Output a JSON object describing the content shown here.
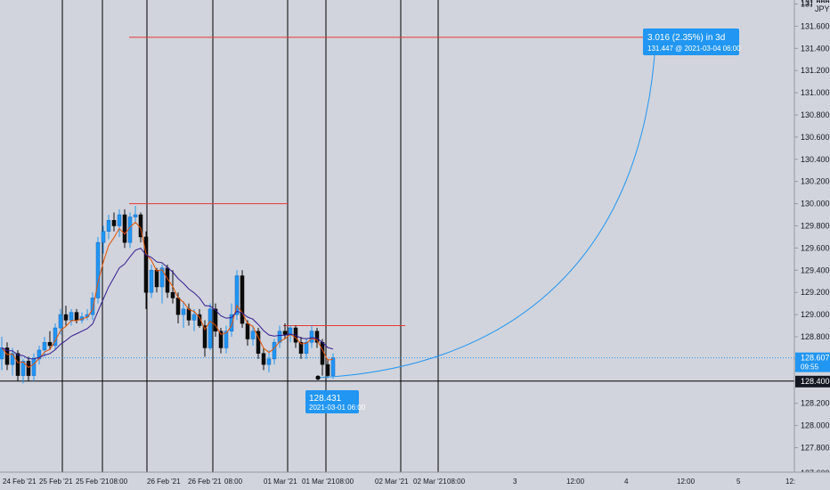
{
  "colors": {
    "background": "#d1d4dc",
    "up": "#2196f3",
    "down": "#0b0b0b",
    "ema_fast": "#e65100",
    "ema_slow": "#311b92",
    "level_line": "#e53935",
    "projection": "#2196f3",
    "label_bg": "#2196f3",
    "label_text": "#ffffff",
    "axis_text": "#131722"
  },
  "price_axis": {
    "currency": "JPY",
    "ticks": [
      "131.800",
      "131.600",
      "131.400",
      "131.200",
      "131.000",
      "130.800",
      "130.600",
      "130.400",
      "130.200",
      "130.000",
      "129.800",
      "129.600",
      "129.400",
      "129.200",
      "129.000",
      "128.800",
      "128.600",
      "128.400",
      "128.200",
      "128.000",
      "127.800"
    ],
    "top_partial": "131.999",
    "bottom_partial": "127.600",
    "current_price": "128.607",
    "countdown": "09:55",
    "crosshair_price": "128.400"
  },
  "time_axis": {
    "ticks": [
      "24 Feb '21",
      "25 Feb '21",
      "25 Feb '21",
      "08:00",
      "26 Feb '21",
      "26 Feb '21",
      "08:00",
      "01 Mar '21",
      "01 Mar '21",
      "08:00",
      "02 Mar '21",
      "02 Mar '21",
      "08:00",
      "3",
      "12:00",
      "4",
      "12:00",
      "5",
      "12:"
    ]
  },
  "annotations": {
    "target": {
      "line1": "3.016 (2.35%) in 3d",
      "line2": "131.447 @ 2021-03-04  06:00"
    },
    "origin": {
      "line1": "128.431",
      "line2": "2021-03-01 06:00"
    }
  },
  "chart_data": {
    "type": "candlestick",
    "symbol_currency": "JPY",
    "ylim": [
      127.6,
      132.0
    ],
    "levels": [
      131.5,
      130.0,
      128.9
    ],
    "projection": {
      "from_price": 128.431,
      "to_price": 131.447,
      "change": 3.016,
      "change_pct": 2.35
    },
    "candles": [
      {
        "o": 128.6,
        "h": 128.8,
        "l": 128.5,
        "c": 128.7
      },
      {
        "o": 128.7,
        "h": 128.75,
        "l": 128.5,
        "c": 128.55
      },
      {
        "o": 128.55,
        "h": 128.7,
        "l": 128.45,
        "c": 128.65
      },
      {
        "o": 128.65,
        "h": 128.68,
        "l": 128.4,
        "c": 128.45
      },
      {
        "o": 128.45,
        "h": 128.6,
        "l": 128.38,
        "c": 128.58
      },
      {
        "o": 128.58,
        "h": 128.62,
        "l": 128.4,
        "c": 128.45
      },
      {
        "o": 128.45,
        "h": 128.65,
        "l": 128.4,
        "c": 128.6
      },
      {
        "o": 128.6,
        "h": 128.72,
        "l": 128.55,
        "c": 128.68
      },
      {
        "o": 128.68,
        "h": 128.8,
        "l": 128.62,
        "c": 128.75
      },
      {
        "o": 128.75,
        "h": 128.85,
        "l": 128.68,
        "c": 128.72
      },
      {
        "o": 128.72,
        "h": 128.92,
        "l": 128.68,
        "c": 128.88
      },
      {
        "o": 128.88,
        "h": 129.05,
        "l": 128.82,
        "c": 129.0
      },
      {
        "o": 129.0,
        "h": 129.08,
        "l": 128.9,
        "c": 128.95
      },
      {
        "o": 128.95,
        "h": 129.05,
        "l": 128.9,
        "c": 129.02
      },
      {
        "o": 129.02,
        "h": 129.05,
        "l": 128.92,
        "c": 128.95
      },
      {
        "o": 128.95,
        "h": 129.02,
        "l": 128.92,
        "c": 128.98
      },
      {
        "o": 128.98,
        "h": 129.05,
        "l": 128.95,
        "c": 129.0
      },
      {
        "o": 129.0,
        "h": 129.2,
        "l": 128.95,
        "c": 129.15
      },
      {
        "o": 129.15,
        "h": 129.7,
        "l": 129.1,
        "c": 129.65
      },
      {
        "o": 129.65,
        "h": 129.8,
        "l": 129.55,
        "c": 129.75
      },
      {
        "o": 129.75,
        "h": 129.9,
        "l": 129.68,
        "c": 129.85
      },
      {
        "o": 129.85,
        "h": 129.92,
        "l": 129.75,
        "c": 129.8
      },
      {
        "o": 129.8,
        "h": 129.95,
        "l": 129.7,
        "c": 129.9
      },
      {
        "o": 129.9,
        "h": 129.95,
        "l": 129.6,
        "c": 129.65
      },
      {
        "o": 129.65,
        "h": 129.92,
        "l": 129.6,
        "c": 129.88
      },
      {
        "o": 129.88,
        "h": 129.98,
        "l": 129.82,
        "c": 129.9
      },
      {
        "o": 129.9,
        "h": 129.92,
        "l": 129.65,
        "c": 129.7
      },
      {
        "o": 129.7,
        "h": 129.75,
        "l": 129.05,
        "c": 129.2
      },
      {
        "o": 129.2,
        "h": 129.45,
        "l": 129.15,
        "c": 129.4
      },
      {
        "o": 129.4,
        "h": 129.42,
        "l": 129.2,
        "c": 129.25
      },
      {
        "o": 129.25,
        "h": 129.45,
        "l": 129.1,
        "c": 129.42
      },
      {
        "o": 129.42,
        "h": 129.45,
        "l": 129.15,
        "c": 129.2
      },
      {
        "o": 129.2,
        "h": 129.4,
        "l": 129.1,
        "c": 129.15
      },
      {
        "o": 129.15,
        "h": 129.2,
        "l": 128.92,
        "c": 129.0
      },
      {
        "o": 129.0,
        "h": 129.12,
        "l": 128.88,
        "c": 129.05
      },
      {
        "o": 129.05,
        "h": 129.1,
        "l": 128.9,
        "c": 128.95
      },
      {
        "o": 128.95,
        "h": 129.05,
        "l": 128.85,
        "c": 129.0
      },
      {
        "o": 129.0,
        "h": 129.05,
        "l": 128.88,
        "c": 128.9
      },
      {
        "o": 128.9,
        "h": 128.95,
        "l": 128.62,
        "c": 128.7
      },
      {
        "o": 128.7,
        "h": 129.1,
        "l": 128.68,
        "c": 129.05
      },
      {
        "o": 129.05,
        "h": 129.1,
        "l": 128.8,
        "c": 128.85
      },
      {
        "o": 128.85,
        "h": 128.88,
        "l": 128.65,
        "c": 128.7
      },
      {
        "o": 128.7,
        "h": 128.9,
        "l": 128.65,
        "c": 128.85
      },
      {
        "o": 128.85,
        "h": 129.1,
        "l": 128.8,
        "c": 129.0
      },
      {
        "o": 129.0,
        "h": 129.4,
        "l": 128.95,
        "c": 129.35
      },
      {
        "o": 129.35,
        "h": 129.4,
        "l": 128.88,
        "c": 128.92
      },
      {
        "o": 128.92,
        "h": 128.95,
        "l": 128.72,
        "c": 128.78
      },
      {
        "o": 128.78,
        "h": 128.9,
        "l": 128.72,
        "c": 128.85
      },
      {
        "o": 128.85,
        "h": 128.88,
        "l": 128.6,
        "c": 128.65
      },
      {
        "o": 128.65,
        "h": 128.7,
        "l": 128.5,
        "c": 128.55
      },
      {
        "o": 128.55,
        "h": 128.68,
        "l": 128.48,
        "c": 128.6
      },
      {
        "o": 128.6,
        "h": 128.78,
        "l": 128.55,
        "c": 128.75
      },
      {
        "o": 128.75,
        "h": 128.9,
        "l": 128.7,
        "c": 128.85
      },
      {
        "o": 128.85,
        "h": 128.92,
        "l": 128.78,
        "c": 128.82
      },
      {
        "o": 128.82,
        "h": 128.9,
        "l": 128.75,
        "c": 128.88
      },
      {
        "o": 128.88,
        "h": 128.9,
        "l": 128.7,
        "c": 128.75
      },
      {
        "o": 128.75,
        "h": 128.8,
        "l": 128.6,
        "c": 128.65
      },
      {
        "o": 128.65,
        "h": 128.78,
        "l": 128.6,
        "c": 128.75
      },
      {
        "o": 128.75,
        "h": 128.9,
        "l": 128.7,
        "c": 128.85
      },
      {
        "o": 128.85,
        "h": 128.88,
        "l": 128.7,
        "c": 128.75
      },
      {
        "o": 128.75,
        "h": 128.78,
        "l": 128.45,
        "c": 128.55
      },
      {
        "o": 128.55,
        "h": 128.6,
        "l": 128.43,
        "c": 128.45
      },
      {
        "o": 128.45,
        "h": 128.65,
        "l": 128.42,
        "c": 128.61
      }
    ]
  }
}
